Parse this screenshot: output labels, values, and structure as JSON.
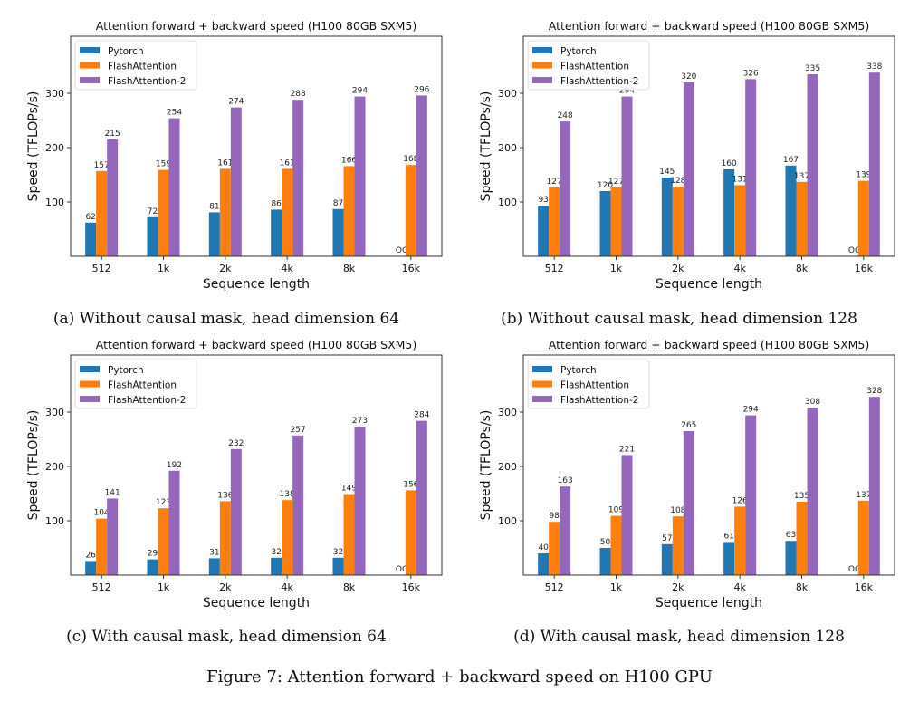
{
  "figure_caption": "Figure 7: Attention forward + backward speed on H100 GPU",
  "colors": {
    "Pytorch": "#1f77b4",
    "FlashAttention": "#ff7f0e",
    "FlashAttention-2": "#9467bd"
  },
  "chart_data": [
    {
      "type": "bar",
      "caption": "(a) Without causal mask, head dimension 64",
      "title": "Attention forward + backward speed (H100 80GB SXM5)",
      "xlabel": "Sequence length",
      "ylabel": "Speed (TFLOPs/s)",
      "categories": [
        "512",
        "1k",
        "2k",
        "4k",
        "8k",
        "16k"
      ],
      "yticks": [
        100,
        200,
        300
      ],
      "ylim": [
        0,
        405
      ],
      "legend": "top-left",
      "grid": false,
      "series": [
        {
          "name": "Pytorch",
          "values": [
            62,
            72,
            81,
            86,
            87,
            null
          ],
          "labels": [
            "62",
            "72",
            "81",
            "86",
            "87",
            "OOM"
          ]
        },
        {
          "name": "FlashAttention",
          "values": [
            157,
            159,
            161,
            161,
            166,
            168
          ],
          "labels": [
            "157",
            "159",
            "161",
            "161",
            "166",
            "168"
          ]
        },
        {
          "name": "FlashAttention-2",
          "values": [
            215,
            254,
            274,
            288,
            294,
            296
          ],
          "labels": [
            "215",
            "254",
            "274",
            "288",
            "294",
            "296"
          ]
        }
      ]
    },
    {
      "type": "bar",
      "caption": "(b) Without causal mask, head dimension 128",
      "title": "Attention forward + backward speed (H100 80GB SXM5)",
      "xlabel": "Sequence length",
      "ylabel": "Speed (TFLOPs/s)",
      "categories": [
        "512",
        "1k",
        "2k",
        "4k",
        "8k",
        "16k"
      ],
      "yticks": [
        100,
        200,
        300
      ],
      "ylim": [
        0,
        405
      ],
      "legend": "top-left",
      "grid": false,
      "series": [
        {
          "name": "Pytorch",
          "values": [
            93,
            120,
            145,
            160,
            167,
            null
          ],
          "labels": [
            "93",
            "120",
            "145",
            "160",
            "167",
            "OOM"
          ]
        },
        {
          "name": "FlashAttention",
          "values": [
            127,
            127,
            128,
            131,
            137,
            139
          ],
          "labels": [
            "127",
            "127",
            "128",
            "131",
            "137",
            "139"
          ]
        },
        {
          "name": "FlashAttention-2",
          "values": [
            248,
            294,
            320,
            326,
            335,
            338
          ],
          "labels": [
            "248",
            "294",
            "320",
            "326",
            "335",
            "338"
          ]
        }
      ]
    },
    {
      "type": "bar",
      "caption": "(c) With causal mask, head dimension 64",
      "title": "Attention forward + backward speed (H100 80GB SXM5)",
      "xlabel": "Sequence length",
      "ylabel": "Speed (TFLOPs/s)",
      "categories": [
        "512",
        "1k",
        "2k",
        "4k",
        "8k",
        "16k"
      ],
      "yticks": [
        100,
        200,
        300
      ],
      "ylim": [
        0,
        405
      ],
      "legend": "top-left",
      "grid": false,
      "series": [
        {
          "name": "Pytorch",
          "values": [
            26,
            29,
            31,
            32,
            32,
            null
          ],
          "labels": [
            "26",
            "29",
            "31",
            "32",
            "32",
            "OOM"
          ]
        },
        {
          "name": "FlashAttention",
          "values": [
            104,
            123,
            136,
            138,
            149,
            156
          ],
          "labels": [
            "104",
            "123",
            "136",
            "138",
            "149",
            "156"
          ]
        },
        {
          "name": "FlashAttention-2",
          "values": [
            141,
            192,
            232,
            257,
            273,
            284
          ],
          "labels": [
            "141",
            "192",
            "232",
            "257",
            "273",
            "284"
          ]
        }
      ]
    },
    {
      "type": "bar",
      "caption": "(d) With causal mask, head dimension 128",
      "title": "Attention forward + backward speed (H100 80GB SXM5)",
      "xlabel": "Sequence length",
      "ylabel": "Speed (TFLOPs/s)",
      "categories": [
        "512",
        "1k",
        "2k",
        "4k",
        "8k",
        "16k"
      ],
      "yticks": [
        100,
        200,
        300
      ],
      "ylim": [
        0,
        405
      ],
      "legend": "top-left",
      "grid": false,
      "series": [
        {
          "name": "Pytorch",
          "values": [
            40,
            50,
            57,
            61,
            63,
            null
          ],
          "labels": [
            "40",
            "50",
            "57",
            "61",
            "63",
            "OOM"
          ]
        },
        {
          "name": "FlashAttention",
          "values": [
            98,
            109,
            108,
            126,
            135,
            137
          ],
          "labels": [
            "98",
            "109",
            "108",
            "126",
            "135",
            "137"
          ]
        },
        {
          "name": "FlashAttention-2",
          "values": [
            163,
            221,
            265,
            294,
            308,
            328
          ],
          "labels": [
            "163",
            "221",
            "265",
            "294",
            "308",
            "328"
          ]
        }
      ]
    }
  ]
}
